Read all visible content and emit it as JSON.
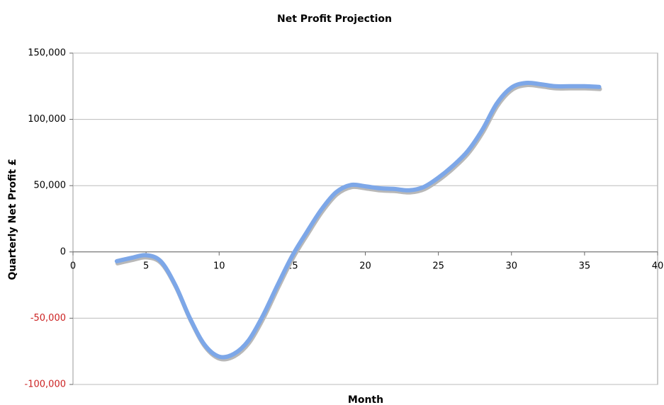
{
  "chart_data": {
    "type": "line",
    "title": "Net Profit Projection",
    "x_label": "Month",
    "y_label": "Quarterly Net Profit £",
    "x": [
      3,
      4,
      5,
      6,
      7,
      8,
      9,
      10,
      11,
      12,
      13,
      14,
      15,
      16,
      17,
      18,
      19,
      20,
      21,
      22,
      23,
      24,
      25,
      26,
      27,
      28,
      29,
      30,
      31,
      32,
      33,
      34,
      35,
      36
    ],
    "series": [
      {
        "color": "#7da7e8",
        "values": [
          -7000,
          -4500,
          -2500,
          -7000,
          -25000,
          -50000,
          -70000,
          -79000,
          -77000,
          -67000,
          -48000,
          -25000,
          -3000,
          15000,
          32000,
          45000,
          50500,
          49500,
          48000,
          47500,
          46500,
          49000,
          56000,
          65000,
          76000,
          92000,
          112000,
          124000,
          127500,
          126500,
          125000,
          125000,
          125000,
          124500
        ]
      }
    ],
    "xlim": [
      0,
      40
    ],
    "xticks": [
      0,
      5,
      10,
      15,
      20,
      25,
      30,
      35,
      40
    ],
    "ylim": [
      -100000,
      150000
    ],
    "yticks": [
      {
        "value": -100000,
        "label": "-100,000"
      },
      {
        "value": -50000,
        "label": "-50,000"
      },
      0,
      {
        "value": 50000,
        "label": "50,000"
      },
      {
        "value": 100000,
        "label": "100,000"
      },
      {
        "value": 150000,
        "label": "150,000"
      }
    ],
    "grid": true,
    "negative_tick_color": "#cc2222"
  }
}
